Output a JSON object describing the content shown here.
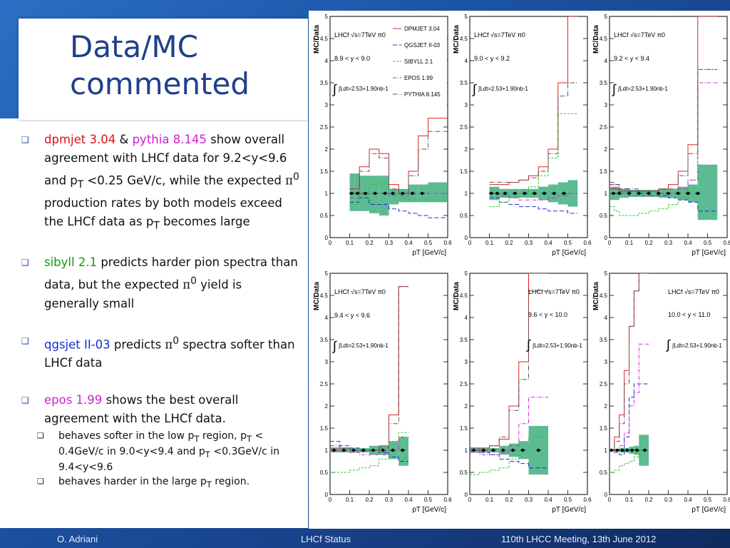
{
  "slide": {
    "title": "Data/MC\ncommented",
    "bullets": [
      {
        "parts": [
          {
            "text": "dpmjet 3.04",
            "color": "red"
          },
          {
            "text": " & "
          },
          {
            "text": "pythia 8.145",
            "color": "mag"
          },
          {
            "text": " show overall agreement with LHCf data for 9.2<y<9.6 and p"
          },
          {
            "text": "T",
            "sub": true
          },
          {
            "text": " <0.25 GeV/c, while the expected "
          },
          {
            "text": "π",
            "pi": true
          },
          {
            "text": "0",
            "sup": true
          },
          {
            "text": " production rates by both models exceed the LHCf data as p"
          },
          {
            "text": "T",
            "sub": true
          },
          {
            "text": " becomes large"
          }
        ]
      },
      {
        "parts": [
          {
            "text": "sibyll 2.1",
            "color": "grn"
          },
          {
            "text": " predicts harder pion spectra than data, but the expected "
          },
          {
            "text": "π",
            "pi": true
          },
          {
            "text": "0",
            "sup": true
          },
          {
            "text": "  yield is generally small"
          }
        ]
      },
      {
        "parts": [
          {
            "text": "qgsjet II-03",
            "color": "blu"
          },
          {
            "text": " predicts "
          },
          {
            "text": "π",
            "pi": true
          },
          {
            "text": "0",
            "sup": true
          },
          {
            "text": " spectra softer than LHCf data"
          }
        ]
      },
      {
        "parts": [
          {
            "text": "epos 1.99",
            "color": "mag"
          },
          {
            "text": " shows the best overall agreement with the LHCf data."
          }
        ],
        "subbullets": [
          {
            "parts": [
              {
                "text": "behaves softer in the low p"
              },
              {
                "text": "T",
                "sub": true
              },
              {
                "text": " region, p"
              },
              {
                "text": "T",
                "sub": true
              },
              {
                "text": " < 0.4GeV/c in 9.0<y<9.4 and p"
              },
              {
                "text": "T",
                "sub": true
              },
              {
                "text": " <0.3GeV/c in 9.4<y<9.6"
              }
            ]
          },
          {
            "parts": [
              {
                "text": "behaves harder in the large p"
              },
              {
                "text": "T",
                "sub": true
              },
              {
                "text": " region."
              }
            ]
          }
        ]
      }
    ]
  },
  "footer": {
    "left": "O. Adriani",
    "center": "LHCf Status",
    "right": "110th LHCC Meeting, 13th June 2012"
  },
  "colors": {
    "DPMJET": "#e02020",
    "QGSJET": "#2030d0",
    "SIBYLL": "#22cc22",
    "EPOS": "#d020d0",
    "PYTHIA": "#555555",
    "band": "#3faf7f"
  },
  "chart_data": [
    {
      "type": "line",
      "ylabel": "MC/Data",
      "xlabel": "pT [GeV/c]",
      "xlim": [
        0,
        0.6
      ],
      "ylim": [
        0,
        5
      ],
      "xticks": [
        "0",
        "0.1",
        "0.2",
        "0.3",
        "0.4",
        "0.5",
        "0.6"
      ],
      "yticks": [
        "0",
        "0.5",
        "1",
        "1.5",
        "2",
        "2.5",
        "3",
        "3.5",
        "4",
        "4.5",
        "5"
      ],
      "label_energy": "LHCf √s=7TeV π0",
      "label_rapidity": "8.9 < y < 9.0",
      "label_lumi": "∫Ldt=2.53+1.90nb-1",
      "legend": [
        "DPMJET 3.04",
        "QGSJET II-03",
        "SIBYLL 2.1",
        "EPOS 1.99",
        "PYTHIA 8.145"
      ],
      "edges": [
        0.1,
        0.125,
        0.15,
        0.2,
        0.25,
        0.3,
        0.35,
        0.4,
        0.45,
        0.5,
        0.6
      ],
      "band_lo": [
        0.6,
        0.6,
        0.6,
        0.55,
        0.5,
        0.75,
        0.8,
        0.8,
        0.8,
        0.8
      ],
      "band_hi": [
        1.45,
        1.45,
        1.4,
        1.4,
        1.4,
        1.1,
        1.1,
        1.2,
        1.2,
        1.25
      ],
      "data_x": [
        0.11,
        0.14,
        0.18,
        0.23,
        0.28,
        0.32,
        0.37,
        0.42,
        0.47
      ],
      "series": [
        {
          "model": "DPMJET",
          "values": [
            1.1,
            1.1,
            1.6,
            2.0,
            1.9,
            1.2,
            1.0,
            1.5,
            2.3,
            2.7
          ]
        },
        {
          "model": "QGSJET",
          "values": [
            0.8,
            0.8,
            0.9,
            0.75,
            0.75,
            0.65,
            0.6,
            0.55,
            0.5,
            0.45
          ]
        },
        {
          "model": "SIBYLL",
          "values": [
            0.75,
            0.75,
            0.95,
            1.2,
            1.25,
            1.0,
            0.9,
            0.85,
            0.85,
            0.85
          ]
        },
        {
          "model": "EPOS",
          "values": [
            0.9,
            0.9,
            1.0,
            1.0,
            1.0,
            0.95,
            0.95,
            1.0,
            1.0,
            1.0
          ]
        },
        {
          "model": "PYTHIA",
          "values": [
            1.0,
            1.0,
            1.5,
            1.9,
            1.8,
            1.1,
            1.0,
            1.4,
            2.0,
            2.4
          ]
        }
      ]
    },
    {
      "type": "line",
      "ylabel": "MC/Data",
      "xlabel": "pT [GeV/c]",
      "xlim": [
        0,
        0.6
      ],
      "ylim": [
        0,
        5
      ],
      "xticks": [
        "0",
        "0.1",
        "0.2",
        "0.3",
        "0.4",
        "0.5",
        "0.6"
      ],
      "yticks": [
        "0",
        "0.5",
        "1",
        "1.5",
        "2",
        "2.5",
        "3",
        "3.5",
        "4",
        "4.5",
        "5"
      ],
      "label_energy": "LHCf √s=7TeV π0",
      "label_rapidity": "9.0 < y < 9.2",
      "label_lumi": "∫Ldt=2.53+1.90nb-1",
      "edges": [
        0.1,
        0.125,
        0.15,
        0.2,
        0.25,
        0.3,
        0.35,
        0.4,
        0.45,
        0.5,
        0.55
      ],
      "band_lo": [
        0.85,
        0.85,
        0.9,
        0.9,
        0.9,
        0.9,
        0.85,
        0.8,
        0.75,
        0.7
      ],
      "band_hi": [
        1.15,
        1.15,
        1.1,
        1.1,
        1.1,
        1.1,
        1.15,
        1.2,
        1.25,
        1.3
      ],
      "data_x": [
        0.11,
        0.14,
        0.18,
        0.23,
        0.28,
        0.33,
        0.38,
        0.43,
        0.48
      ],
      "series": [
        {
          "model": "DPMJET",
          "values": [
            1.2,
            1.2,
            1.2,
            1.25,
            1.3,
            1.4,
            1.6,
            2.0,
            3.5,
            5.0
          ]
        },
        {
          "model": "QGSJET",
          "values": [
            0.9,
            0.9,
            0.8,
            0.75,
            0.7,
            0.7,
            0.65,
            0.6,
            0.6,
            0.55
          ]
        },
        {
          "model": "SIBYLL",
          "values": [
            0.7,
            0.7,
            0.8,
            0.9,
            1.0,
            1.15,
            1.4,
            1.8,
            2.8,
            2.8
          ]
        },
        {
          "model": "EPOS",
          "values": [
            1.0,
            1.0,
            0.95,
            0.9,
            0.85,
            0.85,
            0.85,
            0.9,
            0.95,
            1.0
          ]
        },
        {
          "model": "PYTHIA",
          "values": [
            1.25,
            1.25,
            1.25,
            1.25,
            1.3,
            1.35,
            1.5,
            1.9,
            3.2,
            3.5
          ]
        }
      ]
    },
    {
      "type": "line",
      "ylabel": "MC/Data",
      "xlabel": "pT [GeV/c]",
      "xlim": [
        0,
        0.6
      ],
      "ylim": [
        0,
        5
      ],
      "xticks": [
        "0",
        "0.1",
        "0.2",
        "0.3",
        "0.4",
        "0.5",
        "0.6"
      ],
      "yticks": [
        "0",
        "0.5",
        "1",
        "1.5",
        "2",
        "2.5",
        "3",
        "3.5",
        "4",
        "4.5",
        "5"
      ],
      "label_energy": "LHCf √s=7TeV π0",
      "label_rapidity": "9.2 < y < 9.4",
      "label_lumi": "∫Ldt=2.53+1.90nb-1",
      "edges": [
        0,
        0.025,
        0.05,
        0.1,
        0.15,
        0.2,
        0.25,
        0.3,
        0.35,
        0.4,
        0.45,
        0.55
      ],
      "band_lo": [
        0.85,
        0.85,
        0.9,
        0.92,
        0.92,
        0.92,
        0.9,
        0.9,
        0.85,
        0.8,
        0.4
      ],
      "band_hi": [
        1.15,
        1.15,
        1.1,
        1.08,
        1.08,
        1.08,
        1.1,
        1.1,
        1.15,
        1.2,
        1.65
      ],
      "data_x": [
        0.02,
        0.05,
        0.1,
        0.15,
        0.2,
        0.25,
        0.3,
        0.35,
        0.4,
        0.45
      ],
      "series": [
        {
          "model": "DPMJET",
          "values": [
            1.1,
            1.1,
            1.05,
            1.05,
            1.05,
            1.05,
            1.1,
            1.2,
            1.5,
            2.1,
            5.0
          ]
        },
        {
          "model": "QGSJET",
          "values": [
            1.2,
            1.2,
            1.1,
            1.05,
            1.0,
            0.95,
            0.95,
            0.9,
            0.85,
            0.8,
            0.6
          ]
        },
        {
          "model": "SIBYLL",
          "values": [
            0.7,
            0.6,
            0.5,
            0.5,
            0.55,
            0.6,
            0.65,
            0.75,
            0.9,
            1.3,
            3.8
          ]
        },
        {
          "model": "EPOS",
          "values": [
            1.2,
            1.1,
            1.0,
            0.95,
            0.95,
            0.95,
            1.0,
            1.0,
            1.1,
            1.3,
            3.5
          ]
        },
        {
          "model": "PYTHIA",
          "values": [
            1.25,
            1.2,
            1.1,
            1.1,
            1.05,
            1.05,
            1.1,
            1.1,
            1.4,
            1.9,
            3.8
          ]
        }
      ]
    },
    {
      "type": "line",
      "ylabel": "MC/Data",
      "xlabel": "pT [GeV/c]",
      "xlim": [
        0,
        0.6
      ],
      "ylim": [
        0,
        5
      ],
      "xticks": [
        "0",
        "0.1",
        "0.2",
        "0.3",
        "0.4",
        "0.5",
        "0.6"
      ],
      "yticks": [
        "0",
        "0.5",
        "1",
        "1.5",
        "2",
        "2.5",
        "3",
        "3.5",
        "4",
        "4.5",
        "5"
      ],
      "label_energy": "LHCf √s=7TeV π0",
      "label_rapidity": "9.4 < y < 9.6",
      "label_lumi": "∫Ldt=2.53+1.90nb-1",
      "edges": [
        0,
        0.05,
        0.1,
        0.15,
        0.2,
        0.25,
        0.3,
        0.35,
        0.4
      ],
      "band_lo": [
        0.95,
        0.95,
        0.95,
        0.95,
        0.9,
        0.9,
        0.8,
        0.65
      ],
      "band_hi": [
        1.05,
        1.05,
        1.05,
        1.05,
        1.1,
        1.1,
        1.2,
        1.3
      ],
      "data_x": [
        0.02,
        0.07,
        0.12,
        0.17,
        0.22,
        0.27,
        0.32,
        0.37
      ],
      "series": [
        {
          "model": "DPMJET",
          "values": [
            1.05,
            1.05,
            1.0,
            1.0,
            1.0,
            1.1,
            1.8,
            4.7
          ]
        },
        {
          "model": "QGSJET",
          "values": [
            1.2,
            1.1,
            1.05,
            1.0,
            1.0,
            0.95,
            0.85,
            0.75
          ]
        },
        {
          "model": "SIBYLL",
          "values": [
            0.5,
            0.5,
            0.55,
            0.6,
            0.65,
            0.8,
            1.2,
            1.4
          ]
        },
        {
          "model": "EPOS",
          "values": [
            1.0,
            1.0,
            0.95,
            0.9,
            0.9,
            0.9,
            1.0,
            1.3
          ]
        },
        {
          "model": "PYTHIA",
          "values": [
            1.1,
            1.05,
            1.0,
            1.0,
            1.0,
            1.05,
            1.6,
            4.7
          ]
        }
      ]
    },
    {
      "type": "line",
      "ylabel": "MC/Data",
      "xlabel": "pT [GeV/c]",
      "xlim": [
        0,
        0.6
      ],
      "ylim": [
        0,
        5
      ],
      "xticks": [
        "0",
        "0.1",
        "0.2",
        "0.3",
        "0.4",
        "0.5",
        "0.6"
      ],
      "yticks": [
        "0",
        "0.5",
        "1",
        "1.5",
        "2",
        "2.5",
        "3",
        "3.5",
        "4",
        "4.5",
        "5"
      ],
      "label_energy": "LHCf √s=7TeV π0",
      "label_rapidity": "9.6 < y < 10.0",
      "label_lumi": "∫Ldt=2.53+1.90nb-1",
      "edges": [
        0,
        0.05,
        0.1,
        0.15,
        0.2,
        0.25,
        0.3,
        0.4
      ],
      "band_lo": [
        0.95,
        0.95,
        0.95,
        0.9,
        0.85,
        0.8,
        0.45
      ],
      "band_hi": [
        1.05,
        1.05,
        1.05,
        1.1,
        1.15,
        1.2,
        1.55
      ],
      "data_x": [
        0.02,
        0.07,
        0.12,
        0.17,
        0.22,
        0.27,
        0.35
      ],
      "series": [
        {
          "model": "DPMJET",
          "values": [
            1.05,
            1.05,
            1.1,
            1.25,
            2.0,
            3.0,
            5.0
          ]
        },
        {
          "model": "QGSJET",
          "values": [
            1.0,
            0.95,
            0.9,
            0.8,
            0.75,
            0.7,
            0.6
          ]
        },
        {
          "model": "SIBYLL",
          "values": [
            0.45,
            0.5,
            0.55,
            0.6,
            0.8,
            1.2,
            1.3
          ]
        },
        {
          "model": "EPOS",
          "values": [
            0.95,
            0.9,
            0.9,
            0.95,
            1.1,
            1.6,
            2.2
          ]
        },
        {
          "model": "PYTHIA",
          "values": [
            1.05,
            1.0,
            1.1,
            1.3,
            1.9,
            2.6,
            4.6
          ]
        }
      ]
    },
    {
      "type": "line",
      "ylabel": "MC/Data",
      "xlabel": "pT [GeV/c]",
      "xlim": [
        0,
        0.6
      ],
      "ylim": [
        0,
        5
      ],
      "xticks": [
        "0",
        "0.1",
        "0.2",
        "0.3",
        "0.4",
        "0.5",
        "0.6"
      ],
      "yticks": [
        "0",
        "0.5",
        "1",
        "1.5",
        "2",
        "2.5",
        "3",
        "3.5",
        "4",
        "4.5",
        "5"
      ],
      "label_energy": "LHCf √s=7TeV π0",
      "label_rapidity": "10.0 < y < 11.0",
      "label_lumi": "∫Ldt=2.53+1.90nb-1",
      "edges": [
        0,
        0.025,
        0.05,
        0.075,
        0.1,
        0.125,
        0.15,
        0.2
      ],
      "band_lo": [
        0.97,
        0.97,
        0.95,
        0.95,
        0.92,
        0.9,
        0.65
      ],
      "band_hi": [
        1.03,
        1.03,
        1.05,
        1.05,
        1.08,
        1.1,
        1.35
      ],
      "data_x": [
        0.01,
        0.04,
        0.065,
        0.09,
        0.115,
        0.14,
        0.18
      ],
      "series": [
        {
          "model": "DPMJET",
          "values": [
            1.0,
            1.3,
            1.8,
            2.8,
            3.8,
            4.6,
            5.0
          ]
        },
        {
          "model": "QGSJET",
          "values": [
            1.0,
            0.95,
            0.9,
            1.3,
            2.2,
            2.5,
            2.5
          ]
        },
        {
          "model": "SIBYLL",
          "values": [
            0.5,
            0.55,
            0.65,
            0.7,
            0.75,
            0.85,
            1.0
          ]
        },
        {
          "model": "EPOS",
          "values": [
            1.0,
            1.0,
            1.1,
            1.4,
            2.0,
            2.3,
            3.4
          ]
        },
        {
          "model": "PYTHIA",
          "values": [
            1.0,
            1.2,
            1.6,
            2.5,
            3.8,
            4.6,
            5.0
          ]
        }
      ]
    }
  ]
}
